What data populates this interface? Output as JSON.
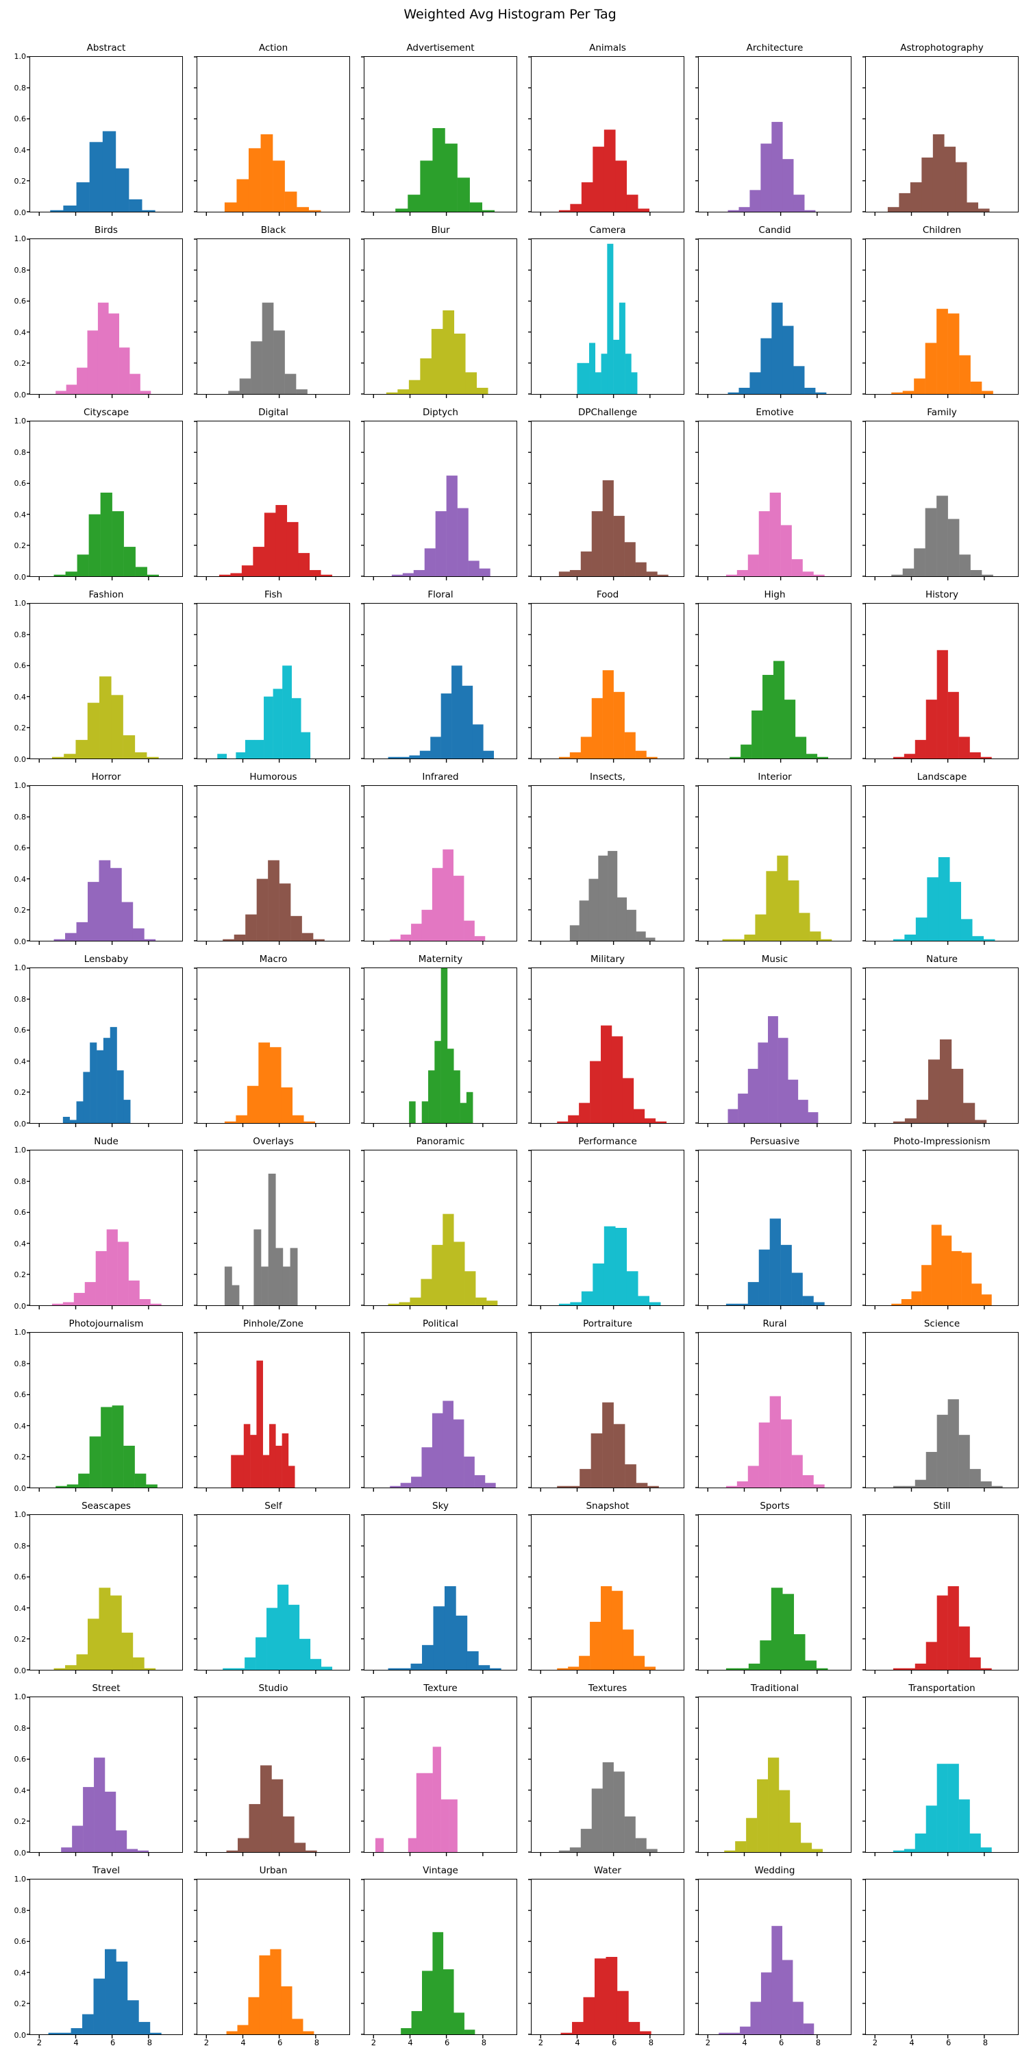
{
  "title": "Weighted Avg Histogram Per Tag",
  "chart_data": {
    "type": "histogram",
    "title": "Weighted Avg Histogram Per Tag",
    "layout": {
      "rows": 11,
      "cols": 6,
      "trailing_empty_subplot": true,
      "shared_axes": true
    },
    "xlim": [
      1.5,
      9.85
    ],
    "ylim": [
      0,
      1
    ],
    "x_tick_values": [
      2,
      4,
      6,
      8
    ],
    "x_tick_labels": [
      "2",
      "4",
      "6",
      "8"
    ],
    "y_tick_values": [
      0.0,
      0.2,
      0.4,
      0.6,
      0.8,
      1.0
    ],
    "y_tick_labels": [
      "0.0",
      "0.2",
      "0.4",
      "0.6",
      "0.8",
      "1.0"
    ],
    "palette": [
      "#1f77b4",
      "#ff7f0e",
      "#2ca02c",
      "#d62728",
      "#9467bd",
      "#8c564b",
      "#e377c2",
      "#7f7f7f",
      "#bcbd22",
      "#17becf"
    ],
    "subplots": [
      {
        "title": "Abstract",
        "x0": 2.6,
        "bin_width": 0.72,
        "heights": [
          0.01,
          0.04,
          0.19,
          0.45,
          0.52,
          0.28,
          0.08,
          0.01
        ]
      },
      {
        "title": "Action",
        "x0": 3.0,
        "bin_width": 0.66,
        "heights": [
          0.06,
          0.21,
          0.41,
          0.5,
          0.33,
          0.13,
          0.03,
          0.01
        ]
      },
      {
        "title": "Advertisement",
        "x0": 3.2,
        "bin_width": 0.68,
        "heights": [
          0.02,
          0.11,
          0.33,
          0.54,
          0.44,
          0.22,
          0.06,
          0.01
        ]
      },
      {
        "title": "Animals",
        "x0": 3.0,
        "bin_width": 0.62,
        "heights": [
          0.01,
          0.05,
          0.19,
          0.42,
          0.53,
          0.33,
          0.11,
          0.02
        ]
      },
      {
        "title": "Architecture",
        "x0": 3.1,
        "bin_width": 0.6,
        "heights": [
          0.01,
          0.03,
          0.14,
          0.44,
          0.58,
          0.34,
          0.11,
          0.01
        ]
      },
      {
        "title": "Astrophotography",
        "x0": 2.7,
        "bin_width": 0.62,
        "heights": [
          0.03,
          0.12,
          0.19,
          0.35,
          0.5,
          0.42,
          0.32,
          0.06,
          0.02
        ]
      },
      {
        "title": "Birds",
        "x0": 2.9,
        "bin_width": 0.58,
        "heights": [
          0.02,
          0.06,
          0.17,
          0.41,
          0.59,
          0.52,
          0.3,
          0.13,
          0.02
        ]
      },
      {
        "title": "Black",
        "x0": 3.2,
        "bin_width": 0.62,
        "heights": [
          0.02,
          0.1,
          0.34,
          0.59,
          0.41,
          0.13,
          0.03
        ]
      },
      {
        "title": "Blur",
        "x0": 2.7,
        "bin_width": 0.62,
        "heights": [
          0.01,
          0.03,
          0.09,
          0.23,
          0.42,
          0.54,
          0.39,
          0.14,
          0.04
        ]
      },
      {
        "title": "Camera",
        "x0": 4.0,
        "bin_width": 0.33,
        "heights": [
          0.2,
          0.2,
          0.33,
          0.14,
          0.26,
          0.97,
          0.35,
          0.59,
          0.26,
          0.14
        ]
      },
      {
        "title": "Candid",
        "x0": 3.1,
        "bin_width": 0.6,
        "heights": [
          0.01,
          0.04,
          0.14,
          0.36,
          0.59,
          0.44,
          0.18,
          0.04,
          0.01
        ]
      },
      {
        "title": "Children",
        "x0": 2.9,
        "bin_width": 0.62,
        "heights": [
          0.01,
          0.02,
          0.1,
          0.33,
          0.55,
          0.52,
          0.25,
          0.08,
          0.02
        ]
      },
      {
        "title": "Cityscape",
        "x0": 2.8,
        "bin_width": 0.64,
        "heights": [
          0.01,
          0.03,
          0.14,
          0.4,
          0.54,
          0.42,
          0.19,
          0.06,
          0.01
        ]
      },
      {
        "title": "Digital",
        "x0": 2.7,
        "bin_width": 0.62,
        "heights": [
          0.01,
          0.02,
          0.07,
          0.19,
          0.41,
          0.46,
          0.35,
          0.15,
          0.04,
          0.01
        ]
      },
      {
        "title": "Diptych",
        "x0": 3.0,
        "bin_width": 0.6,
        "heights": [
          0.01,
          0.02,
          0.04,
          0.18,
          0.42,
          0.65,
          0.44,
          0.1,
          0.05
        ]
      },
      {
        "title": "DPChallenge",
        "x0": 3.0,
        "bin_width": 0.6,
        "heights": [
          0.03,
          0.04,
          0.16,
          0.42,
          0.62,
          0.39,
          0.22,
          0.09,
          0.03,
          0.01
        ]
      },
      {
        "title": "Emotive",
        "x0": 3.0,
        "bin_width": 0.6,
        "heights": [
          0.01,
          0.04,
          0.14,
          0.42,
          0.54,
          0.33,
          0.11,
          0.03,
          0.01
        ]
      },
      {
        "title": "Family",
        "x0": 2.9,
        "bin_width": 0.62,
        "heights": [
          0.01,
          0.05,
          0.18,
          0.44,
          0.52,
          0.37,
          0.14,
          0.04,
          0.01
        ]
      },
      {
        "title": "Fashion",
        "x0": 2.7,
        "bin_width": 0.65,
        "heights": [
          0.01,
          0.03,
          0.12,
          0.36,
          0.53,
          0.41,
          0.15,
          0.04,
          0.01
        ]
      },
      {
        "title": "Fish",
        "x0": 2.6,
        "bin_width": 0.51,
        "heights": [
          0.03,
          0,
          0.04,
          0.12,
          0.12,
          0.4,
          0.45,
          0.6,
          0.39,
          0.17
        ]
      },
      {
        "title": "Floral",
        "x0": 2.8,
        "bin_width": 0.58,
        "heights": [
          0.01,
          0.01,
          0.02,
          0.05,
          0.14,
          0.42,
          0.6,
          0.47,
          0.22,
          0.05
        ]
      },
      {
        "title": "Food",
        "x0": 3.0,
        "bin_width": 0.6,
        "heights": [
          0.01,
          0.04,
          0.14,
          0.39,
          0.57,
          0.43,
          0.17,
          0.05,
          0.01
        ]
      },
      {
        "title": "High",
        "x0": 3.2,
        "bin_width": 0.6,
        "heights": [
          0.01,
          0.09,
          0.31,
          0.54,
          0.63,
          0.38,
          0.14,
          0.03,
          0.01
        ]
      },
      {
        "title": "History",
        "x0": 3.0,
        "bin_width": 0.6,
        "heights": [
          0.01,
          0.03,
          0.12,
          0.38,
          0.7,
          0.43,
          0.14,
          0.04,
          0.01
        ]
      },
      {
        "title": "Horror",
        "x0": 2.8,
        "bin_width": 0.62,
        "heights": [
          0.01,
          0.05,
          0.12,
          0.38,
          0.52,
          0.47,
          0.25,
          0.08,
          0.01
        ]
      },
      {
        "title": "Humorous",
        "x0": 2.9,
        "bin_width": 0.62,
        "heights": [
          0.01,
          0.04,
          0.17,
          0.4,
          0.52,
          0.37,
          0.16,
          0.05,
          0.01
        ]
      },
      {
        "title": "Infrared",
        "x0": 2.9,
        "bin_width": 0.58,
        "heights": [
          0.01,
          0.04,
          0.11,
          0.2,
          0.47,
          0.59,
          0.42,
          0.13,
          0.03
        ]
      },
      {
        "title": "Insects,",
        "x0": 3.6,
        "bin_width": 0.52,
        "heights": [
          0.1,
          0.26,
          0.4,
          0.55,
          0.58,
          0.28,
          0.2,
          0.06,
          0.02
        ]
      },
      {
        "title": "Interior",
        "x0": 2.8,
        "bin_width": 0.6,
        "heights": [
          0.01,
          0.01,
          0.04,
          0.17,
          0.45,
          0.55,
          0.39,
          0.18,
          0.06,
          0.01
        ]
      },
      {
        "title": "Landscape",
        "x0": 3.0,
        "bin_width": 0.62,
        "heights": [
          0.01,
          0.04,
          0.15,
          0.41,
          0.54,
          0.38,
          0.14,
          0.03,
          0.01
        ]
      },
      {
        "title": "Lensbaby",
        "x0": 3.3,
        "bin_width": 0.37,
        "heights": [
          0.04,
          0.02,
          0.14,
          0.33,
          0.52,
          0.47,
          0.55,
          0.62,
          0.34,
          0.15
        ]
      },
      {
        "title": "Macro",
        "x0": 3.0,
        "bin_width": 0.62,
        "heights": [
          0.01,
          0.05,
          0.24,
          0.52,
          0.49,
          0.23,
          0.05,
          0.01
        ]
      },
      {
        "title": "Maternity",
        "x0": 3.95,
        "bin_width": 0.35,
        "heights": [
          0.14,
          0,
          0.14,
          0.34,
          0.53,
          1.0,
          0.48,
          0.34,
          0.13,
          0.2
        ]
      },
      {
        "title": "Military",
        "x0": 2.9,
        "bin_width": 0.6,
        "heights": [
          0.01,
          0.05,
          0.13,
          0.4,
          0.63,
          0.56,
          0.29,
          0.09,
          0.03,
          0.01
        ]
      },
      {
        "title": "Music",
        "x0": 3.1,
        "bin_width": 0.55,
        "heights": [
          0.09,
          0.19,
          0.35,
          0.52,
          0.69,
          0.55,
          0.28,
          0.15,
          0.07
        ]
      },
      {
        "title": "Nature",
        "x0": 3.0,
        "bin_width": 0.64,
        "heights": [
          0.01,
          0.03,
          0.15,
          0.41,
          0.54,
          0.35,
          0.13,
          0.02
        ]
      },
      {
        "title": "Nude",
        "x0": 2.7,
        "bin_width": 0.6,
        "heights": [
          0.01,
          0.02,
          0.08,
          0.15,
          0.35,
          0.49,
          0.41,
          0.16,
          0.04,
          0.01
        ]
      },
      {
        "title": "Overlays",
        "x0": 3.0,
        "bin_width": 0.4,
        "heights": [
          0.25,
          0.13,
          0,
          0,
          0.49,
          0.25,
          0.85,
          0.37,
          0.25,
          0.37
        ]
      },
      {
        "title": "Panoramic",
        "x0": 2.8,
        "bin_width": 0.6,
        "heights": [
          0.01,
          0.02,
          0.05,
          0.17,
          0.39,
          0.59,
          0.41,
          0.22,
          0.05,
          0.03
        ]
      },
      {
        "title": "Performance",
        "x0": 3.0,
        "bin_width": 0.62,
        "heights": [
          0.01,
          0.02,
          0.09,
          0.27,
          0.51,
          0.5,
          0.22,
          0.06,
          0.02
        ]
      },
      {
        "title": "Persuasive",
        "x0": 3.0,
        "bin_width": 0.6,
        "heights": [
          0.01,
          0.01,
          0.15,
          0.36,
          0.56,
          0.39,
          0.21,
          0.06,
          0.02
        ]
      },
      {
        "title": "Photo-Impressionism",
        "x0": 2.9,
        "bin_width": 0.55,
        "heights": [
          0.01,
          0.04,
          0.09,
          0.26,
          0.52,
          0.45,
          0.35,
          0.34,
          0.14,
          0.07
        ]
      },
      {
        "title": "Photojournalism",
        "x0": 2.9,
        "bin_width": 0.62,
        "heights": [
          0.01,
          0.02,
          0.09,
          0.33,
          0.52,
          0.53,
          0.27,
          0.09,
          0.02
        ]
      },
      {
        "title": "Pinhole/Zone",
        "x0": 3.35,
        "bin_width": 0.35,
        "heights": [
          0.21,
          0.21,
          0.41,
          0.34,
          0.82,
          0.21,
          0.41,
          0.27,
          0.35,
          0.14
        ]
      },
      {
        "title": "Political",
        "x0": 2.9,
        "bin_width": 0.58,
        "heights": [
          0.01,
          0.03,
          0.07,
          0.26,
          0.48,
          0.56,
          0.44,
          0.2,
          0.08,
          0.03
        ]
      },
      {
        "title": "Portraiture",
        "x0": 2.9,
        "bin_width": 0.62,
        "heights": [
          0.01,
          0.01,
          0.12,
          0.35,
          0.55,
          0.41,
          0.15,
          0.03,
          0.01
        ]
      },
      {
        "title": "Rural",
        "x0": 3.0,
        "bin_width": 0.6,
        "heights": [
          0.01,
          0.04,
          0.14,
          0.42,
          0.59,
          0.44,
          0.21,
          0.08,
          0.02
        ]
      },
      {
        "title": "Science",
        "x0": 3.0,
        "bin_width": 0.6,
        "heights": [
          0.01,
          0.01,
          0.05,
          0.23,
          0.47,
          0.57,
          0.34,
          0.12,
          0.04,
          0.01
        ]
      },
      {
        "title": "Seascapes",
        "x0": 2.8,
        "bin_width": 0.62,
        "heights": [
          0.01,
          0.03,
          0.1,
          0.33,
          0.53,
          0.48,
          0.24,
          0.08,
          0.01
        ]
      },
      {
        "title": "Self",
        "x0": 2.9,
        "bin_width": 0.6,
        "heights": [
          0.01,
          0.01,
          0.08,
          0.21,
          0.4,
          0.55,
          0.42,
          0.2,
          0.07,
          0.02
        ]
      },
      {
        "title": "Sky",
        "x0": 2.8,
        "bin_width": 0.62,
        "heights": [
          0.01,
          0.01,
          0.04,
          0.16,
          0.41,
          0.54,
          0.35,
          0.12,
          0.03,
          0.01
        ]
      },
      {
        "title": "Snapshot",
        "x0": 2.9,
        "bin_width": 0.6,
        "heights": [
          0.01,
          0.02,
          0.09,
          0.31,
          0.54,
          0.51,
          0.26,
          0.09,
          0.02
        ]
      },
      {
        "title": "Sports",
        "x0": 3.0,
        "bin_width": 0.62,
        "heights": [
          0.01,
          0.01,
          0.04,
          0.19,
          0.53,
          0.49,
          0.23,
          0.06,
          0.01
        ]
      },
      {
        "title": "Still",
        "x0": 3.0,
        "bin_width": 0.6,
        "heights": [
          0.01,
          0.01,
          0.04,
          0.18,
          0.48,
          0.54,
          0.28,
          0.08,
          0.01
        ]
      },
      {
        "title": "Street",
        "x0": 3.2,
        "bin_width": 0.6,
        "heights": [
          0.03,
          0.17,
          0.42,
          0.61,
          0.39,
          0.14,
          0.02,
          0.01
        ]
      },
      {
        "title": "Studio",
        "x0": 3.1,
        "bin_width": 0.62,
        "heights": [
          0.01,
          0.09,
          0.31,
          0.56,
          0.47,
          0.23,
          0.06,
          0.01
        ]
      },
      {
        "title": "Texture",
        "x0": 2.1,
        "bin_width": 0.45,
        "heights": [
          0.09,
          0,
          0,
          0,
          0.09,
          0.51,
          0.51,
          0.68,
          0.34,
          0.34
        ]
      },
      {
        "title": "Textures",
        "x0": 3.0,
        "bin_width": 0.6,
        "heights": [
          0.01,
          0.03,
          0.15,
          0.41,
          0.58,
          0.52,
          0.23,
          0.09,
          0.02
        ]
      },
      {
        "title": "Traditional",
        "x0": 2.9,
        "bin_width": 0.6,
        "heights": [
          0.01,
          0.07,
          0.22,
          0.47,
          0.61,
          0.4,
          0.19,
          0.06,
          0.02
        ]
      },
      {
        "title": "Transportation",
        "x0": 3.0,
        "bin_width": 0.6,
        "heights": [
          0.01,
          0.02,
          0.12,
          0.3,
          0.57,
          0.57,
          0.34,
          0.12,
          0.03
        ]
      },
      {
        "title": "Travel",
        "x0": 2.5,
        "bin_width": 0.62,
        "heights": [
          0.01,
          0.01,
          0.04,
          0.13,
          0.36,
          0.55,
          0.47,
          0.22,
          0.08,
          0.01
        ]
      },
      {
        "title": "Urban",
        "x0": 3.1,
        "bin_width": 0.6,
        "heights": [
          0.02,
          0.06,
          0.24,
          0.51,
          0.55,
          0.31,
          0.1,
          0.02
        ]
      },
      {
        "title": "Vintage",
        "x0": 3.5,
        "bin_width": 0.58,
        "heights": [
          0.04,
          0.15,
          0.41,
          0.66,
          0.42,
          0.14,
          0.03
        ]
      },
      {
        "title": "Water",
        "x0": 3.1,
        "bin_width": 0.62,
        "heights": [
          0.01,
          0.08,
          0.24,
          0.49,
          0.5,
          0.28,
          0.08,
          0.02
        ]
      },
      {
        "title": "Wedding",
        "x0": 2.6,
        "bin_width": 0.58,
        "heights": [
          0.01,
          0.01,
          0.05,
          0.21,
          0.4,
          0.7,
          0.48,
          0.21,
          0.07
        ]
      }
    ]
  }
}
